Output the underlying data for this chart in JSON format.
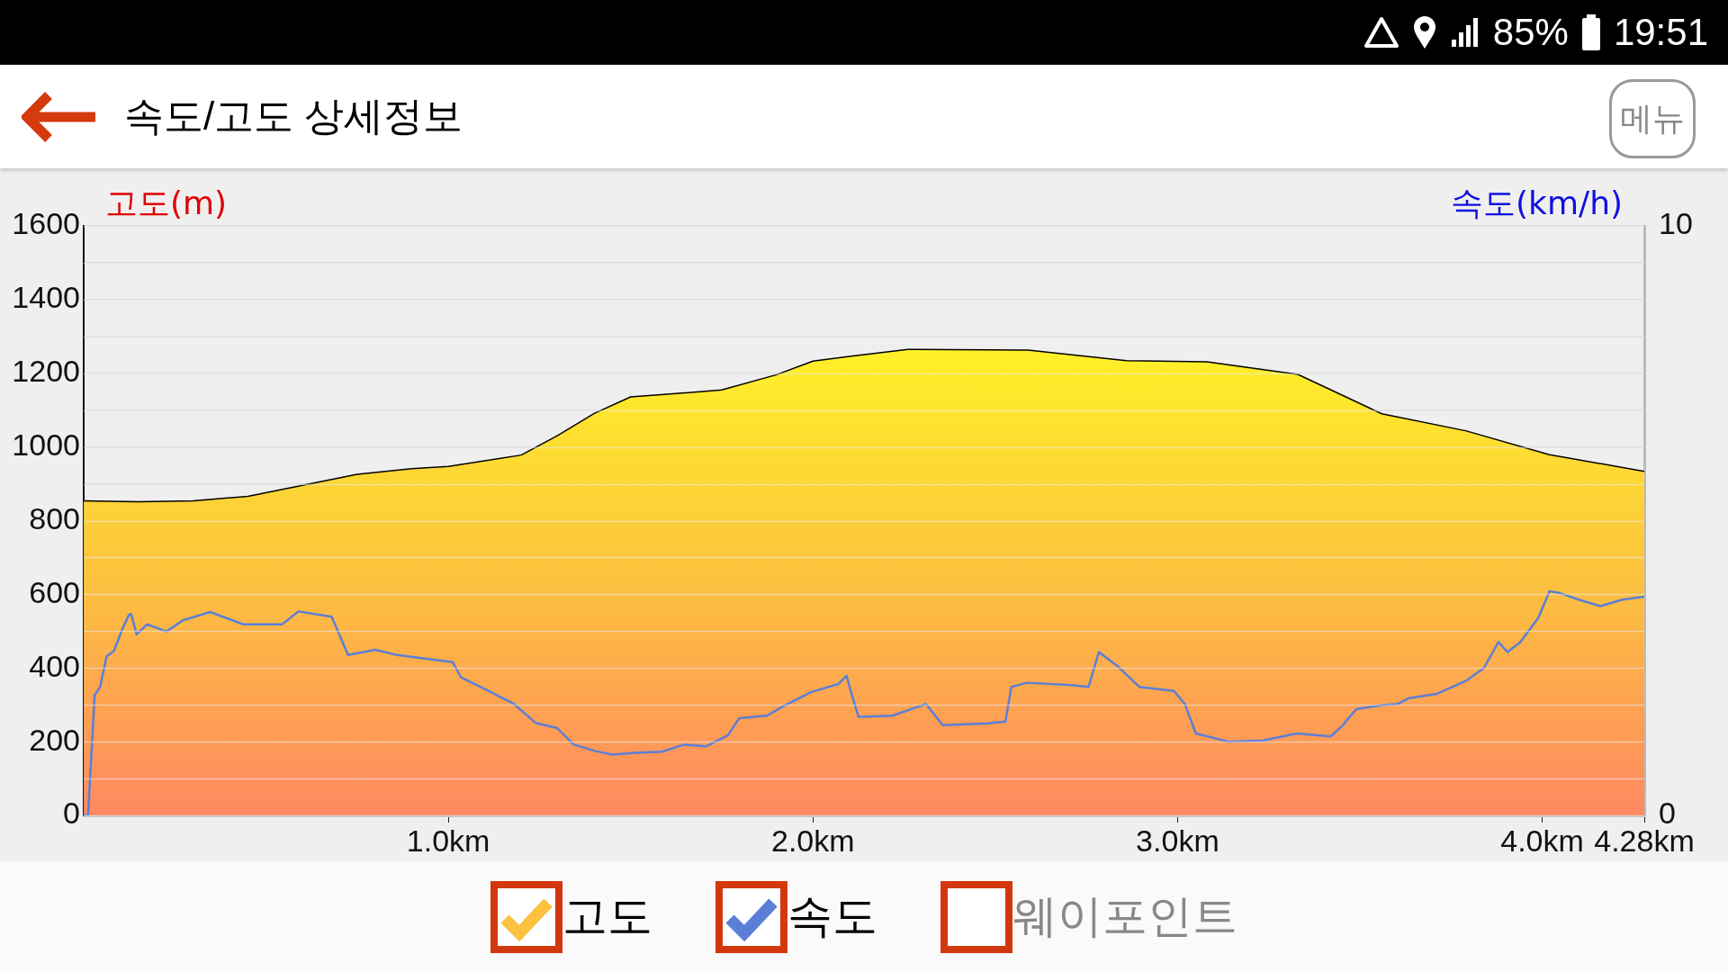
{
  "chart_data": {
    "type": "line",
    "title": "속도/고도 상세정보",
    "ylabel": "고도(m)",
    "y2label": "속도(km/h)",
    "annotations": [
      "메뉴",
      "웨이포인트",
      "85%",
      "19:51"
    ],
    "xlim": [
      0,
      4.28
    ],
    "xticks": [
      {
        "value": 1,
        "label": "1.0km"
      },
      {
        "value": 2,
        "label": "2.0km"
      },
      {
        "value": 3,
        "label": "3.0km"
      },
      {
        "value": 4,
        "label": "4.0km"
      },
      {
        "value": 4.28,
        "label": "4.28km"
      }
    ],
    "ylim": [
      0,
      1600
    ],
    "yticks": [
      0,
      {
        "value": 100,
        "label": null
      },
      200,
      {
        "value": 300,
        "label": null
      },
      400,
      {
        "value": 500,
        "label": null
      },
      600,
      {
        "value": 700,
        "label": null
      },
      800,
      {
        "value": 900,
        "label": null
      },
      1000,
      {
        "value": 1100,
        "label": null
      },
      1200,
      {
        "value": 1300,
        "label": null
      },
      1400,
      {
        "value": 1500,
        "label": null
      },
      1600
    ],
    "y2lim": [
      0,
      10
    ],
    "y2ticks": [
      0,
      10
    ],
    "grid": "y",
    "legend": "bottom",
    "series": [
      {
        "name": "고도",
        "type": "area",
        "color": "#fcc13e",
        "x": [
          0,
          0.15,
          0.3,
          0.45,
          0.6,
          0.75,
          0.9,
          1.0,
          1.2,
          1.3,
          1.4,
          1.5,
          1.6,
          1.75,
          1.9,
          2.0,
          2.1,
          2.26,
          2.59,
          2.86,
          3.08,
          3.33,
          3.56,
          3.79,
          4.02,
          4.28
        ],
        "values": [
          854,
          851,
          854,
          866,
          896,
          926,
          941,
          947,
          978,
          1031,
          1091,
          1136,
          1143,
          1155,
          1196,
          1233,
          1246,
          1265,
          1263,
          1234,
          1231,
          1197,
          1090,
          1044,
          979,
          934
        ]
      },
      {
        "name": "속도",
        "type": "line",
        "axis": "y2",
        "color": "#5b7fd6",
        "x": [
          0,
          0.012,
          0.03,
          0.045,
          0.063,
          0.083,
          0.106,
          0.124,
          0.13,
          0.145,
          0.174,
          0.227,
          0.272,
          0.347,
          0.438,
          0.544,
          0.589,
          0.68,
          0.725,
          0.8,
          0.86,
          0.95,
          1.012,
          1.035,
          1.088,
          1.178,
          1.239,
          1.299,
          1.344,
          1.405,
          1.45,
          1.51,
          1.586,
          1.646,
          1.707,
          1.767,
          1.798,
          1.873,
          1.918,
          1.994,
          2.07,
          2.092,
          2.107,
          2.125,
          2.217,
          2.31,
          2.356,
          2.48,
          2.528,
          2.544,
          2.587,
          2.71,
          2.756,
          2.784,
          2.834,
          2.895,
          2.99,
          3.02,
          3.05,
          3.14,
          3.234,
          3.327,
          3.42,
          3.45,
          3.49,
          3.56,
          3.604,
          3.635,
          3.71,
          3.79,
          3.84,
          3.88,
          3.905,
          3.94,
          3.99,
          4.02,
          4.044,
          4.1,
          4.16,
          4.22,
          4.28
        ],
        "values": [
          0,
          0,
          2.04,
          2.18,
          2.7,
          2.79,
          3.16,
          3.4,
          3.42,
          3.07,
          3.24,
          3.12,
          3.31,
          3.45,
          3.24,
          3.24,
          3.46,
          3.37,
          2.72,
          2.81,
          2.72,
          2.65,
          2.6,
          2.34,
          2.18,
          1.9,
          1.57,
          1.48,
          1.2,
          1.09,
          1.03,
          1.06,
          1.08,
          1.2,
          1.17,
          1.36,
          1.65,
          1.69,
          1.85,
          2.09,
          2.23,
          2.37,
          2.04,
          1.67,
          1.69,
          1.89,
          1.53,
          1.56,
          1.59,
          2.18,
          2.25,
          2.21,
          2.18,
          2.77,
          2.54,
          2.18,
          2.11,
          1.89,
          1.39,
          1.25,
          1.27,
          1.39,
          1.34,
          1.51,
          1.8,
          1.87,
          1.89,
          1.99,
          2.06,
          2.28,
          2.5,
          2.94,
          2.77,
          2.94,
          3.36,
          3.8,
          3.78,
          3.66,
          3.55,
          3.66,
          3.71
        ]
      }
    ]
  }
}
